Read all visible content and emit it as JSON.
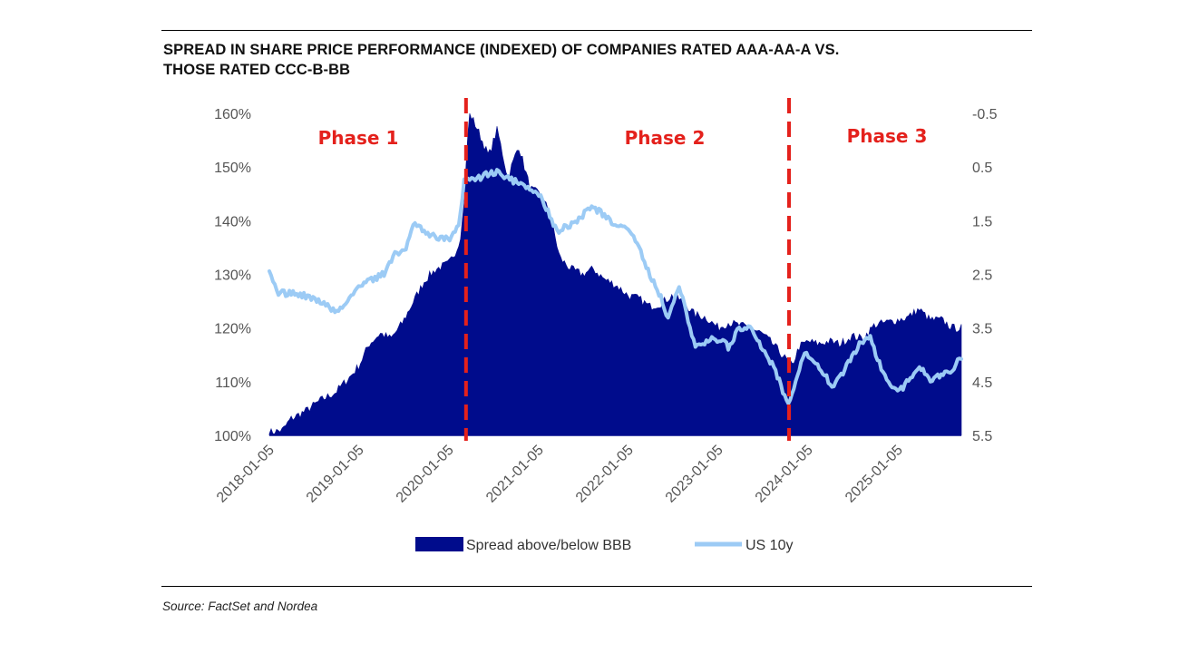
{
  "title_line1": "SPREAD IN SHARE PRICE PERFORMANCE (INDEXED) OF COMPANIES RATED AAA-AA-A VS.",
  "title_line2": "THOSE RATED CCC-B-BB",
  "source": "Source: FactSet and Nordea",
  "colors": {
    "spread": "#000c8c",
    "us10y": "#9ccbf5",
    "phase_line": "#e4211c"
  },
  "chart_data": {
    "type": "area",
    "title": "SPREAD IN SHARE PRICE PERFORMANCE (INDEXED) OF COMPANIES RATED AAA-AA-A VS. THOSE RATED CCC-B-BB",
    "x_ticks": [
      "2018-01-05",
      "2019-01-05",
      "2020-01-05",
      "2021-01-05",
      "2022-01-05",
      "2023-01-05",
      "2024-01-05",
      "2025-01-05"
    ],
    "x_range": [
      "2018-01-05",
      "2025-09-20"
    ],
    "left_axis": {
      "ticks": [
        "100%",
        "110%",
        "120%",
        "130%",
        "140%",
        "150%",
        "160%"
      ],
      "range": [
        100,
        160
      ]
    },
    "right_axis": {
      "ticks": [
        "-0.5",
        "0.5",
        "1.5",
        "2.5",
        "3.5",
        "4.5",
        "5.5"
      ],
      "range": [
        -0.5,
        5.5
      ],
      "inverted": true
    },
    "phases": [
      {
        "label": "Phase 1",
        "date": ""
      },
      {
        "label": "Phase 2",
        "date": "2020-03-15"
      },
      {
        "label": "Phase 3",
        "date": "2023-10-20"
      }
    ],
    "series": [
      {
        "name": "Spread above/below BBB",
        "type": "area",
        "axis": "left",
        "points": [
          [
            "2018-01-05",
            100.5
          ],
          [
            "2018-03-01",
            101
          ],
          [
            "2018-04-01",
            103
          ],
          [
            "2018-06-01",
            104.5
          ],
          [
            "2018-08-01",
            106.5
          ],
          [
            "2018-10-01",
            108
          ],
          [
            "2018-12-01",
            111
          ],
          [
            "2019-01-05",
            113
          ],
          [
            "2019-02-15",
            117
          ],
          [
            "2019-04-01",
            119
          ],
          [
            "2019-05-15",
            118
          ],
          [
            "2019-07-01",
            121
          ],
          [
            "2019-08-15",
            125
          ],
          [
            "2019-10-01",
            129
          ],
          [
            "2019-11-15",
            131
          ],
          [
            "2020-01-05",
            132
          ],
          [
            "2020-02-10",
            135
          ],
          [
            "2020-02-25",
            138
          ],
          [
            "2020-03-10",
            145
          ],
          [
            "2020-03-20",
            155
          ],
          [
            "2020-03-30",
            160
          ],
          [
            "2020-05-01",
            157
          ],
          [
            "2020-06-15",
            152
          ],
          [
            "2020-07-20",
            157
          ],
          [
            "2020-09-01",
            148
          ],
          [
            "2020-10-15",
            154
          ],
          [
            "2020-12-01",
            146
          ],
          [
            "2021-01-05",
            145
          ],
          [
            "2021-02-15",
            142
          ],
          [
            "2021-04-01",
            133
          ],
          [
            "2021-05-15",
            131
          ],
          [
            "2021-07-01",
            130
          ],
          [
            "2021-08-15",
            131
          ],
          [
            "2021-10-01",
            129
          ],
          [
            "2021-11-15",
            128
          ],
          [
            "2022-01-05",
            126
          ],
          [
            "2022-02-15",
            125.5
          ],
          [
            "2022-04-01",
            124
          ],
          [
            "2022-05-15",
            124.5
          ],
          [
            "2022-07-01",
            126
          ],
          [
            "2022-08-15",
            125
          ],
          [
            "2022-10-01",
            122.5
          ],
          [
            "2022-11-15",
            122
          ],
          [
            "2023-01-05",
            120
          ],
          [
            "2023-02-15",
            121
          ],
          [
            "2023-04-01",
            120.5
          ],
          [
            "2023-05-15",
            120
          ],
          [
            "2023-07-01",
            119
          ],
          [
            "2023-08-15",
            117
          ],
          [
            "2023-10-01",
            114.5
          ],
          [
            "2023-11-01",
            113
          ],
          [
            "2023-12-01",
            116.5
          ],
          [
            "2024-01-05",
            117.5
          ],
          [
            "2024-02-15",
            117
          ],
          [
            "2024-04-01",
            117.5
          ],
          [
            "2024-05-15",
            117
          ],
          [
            "2024-07-01",
            118.5
          ],
          [
            "2024-08-15",
            118
          ],
          [
            "2024-10-01",
            120.5
          ],
          [
            "2024-11-15",
            121
          ],
          [
            "2025-01-05",
            121.5
          ],
          [
            "2025-02-15",
            122
          ],
          [
            "2025-04-01",
            123.5
          ],
          [
            "2025-05-15",
            121.5
          ],
          [
            "2025-07-01",
            121.5
          ],
          [
            "2025-08-15",
            120
          ],
          [
            "2025-09-20",
            120
          ]
        ]
      },
      {
        "name": "US 10y",
        "type": "line",
        "axis": "right",
        "points": [
          [
            "2018-01-05",
            2.5
          ],
          [
            "2018-02-10",
            2.85
          ],
          [
            "2018-04-01",
            2.85
          ],
          [
            "2018-06-01",
            2.9
          ],
          [
            "2018-08-01",
            3.0
          ],
          [
            "2018-10-01",
            3.2
          ],
          [
            "2018-11-15",
            3.05
          ],
          [
            "2019-01-05",
            2.7
          ],
          [
            "2019-03-01",
            2.6
          ],
          [
            "2019-04-15",
            2.5
          ],
          [
            "2019-06-01",
            2.1
          ],
          [
            "2019-07-15",
            2.05
          ],
          [
            "2019-08-15",
            1.5
          ],
          [
            "2019-10-01",
            1.7
          ],
          [
            "2019-11-15",
            1.8
          ],
          [
            "2020-01-05",
            1.85
          ],
          [
            "2020-02-15",
            1.55
          ],
          [
            "2020-03-10",
            0.7
          ],
          [
            "2020-04-15",
            0.75
          ],
          [
            "2020-06-01",
            0.65
          ],
          [
            "2020-07-15",
            0.6
          ],
          [
            "2020-09-01",
            0.7
          ],
          [
            "2020-11-01",
            0.85
          ],
          [
            "2021-01-05",
            1.0
          ],
          [
            "2021-02-15",
            1.35
          ],
          [
            "2021-03-20",
            1.7
          ],
          [
            "2021-05-01",
            1.6
          ],
          [
            "2021-06-15",
            1.5
          ],
          [
            "2021-08-01",
            1.25
          ],
          [
            "2021-09-15",
            1.35
          ],
          [
            "2021-11-01",
            1.55
          ],
          [
            "2022-01-05",
            1.65
          ],
          [
            "2022-02-15",
            1.95
          ],
          [
            "2022-04-01",
            2.5
          ],
          [
            "2022-05-15",
            2.9
          ],
          [
            "2022-06-15",
            3.3
          ],
          [
            "2022-08-01",
            2.75
          ],
          [
            "2022-10-01",
            3.8
          ],
          [
            "2022-11-15",
            3.75
          ],
          [
            "2023-01-05",
            3.7
          ],
          [
            "2023-02-15",
            3.85
          ],
          [
            "2023-04-01",
            3.5
          ],
          [
            "2023-05-15",
            3.45
          ],
          [
            "2023-07-01",
            3.9
          ],
          [
            "2023-08-15",
            4.2
          ],
          [
            "2023-10-20",
            4.95
          ],
          [
            "2023-12-15",
            4.0
          ],
          [
            "2024-01-05",
            4.0
          ],
          [
            "2024-02-15",
            4.2
          ],
          [
            "2024-04-15",
            4.6
          ],
          [
            "2024-06-01",
            4.3
          ],
          [
            "2024-08-01",
            3.8
          ],
          [
            "2024-09-15",
            3.7
          ],
          [
            "2024-11-01",
            4.3
          ],
          [
            "2025-01-05",
            4.7
          ],
          [
            "2025-02-15",
            4.5
          ],
          [
            "2025-04-01",
            4.2
          ],
          [
            "2025-05-15",
            4.45
          ],
          [
            "2025-07-01",
            4.4
          ],
          [
            "2025-08-15",
            4.25
          ],
          [
            "2025-09-20",
            4.05
          ]
        ]
      }
    ],
    "legend": [
      "Spread above/below BBB",
      "US 10y"
    ],
    "legend_position": "bottom"
  }
}
